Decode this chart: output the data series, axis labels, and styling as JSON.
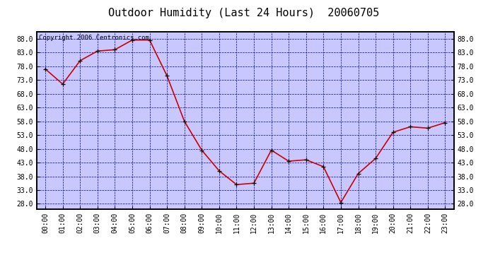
{
  "title": "Outdoor Humidity (Last 24 Hours)  20060705",
  "copyright_text": "Copyright 2006 Centronics.com",
  "x_labels": [
    "00:00",
    "01:00",
    "02:00",
    "03:00",
    "04:00",
    "05:00",
    "06:00",
    "07:00",
    "08:00",
    "09:00",
    "10:00",
    "11:00",
    "12:00",
    "13:00",
    "14:00",
    "15:00",
    "16:00",
    "17:00",
    "18:00",
    "19:00",
    "20:00",
    "21:00",
    "22:00",
    "23:00"
  ],
  "x_values": [
    0,
    1,
    2,
    3,
    4,
    5,
    6,
    7,
    8,
    9,
    10,
    11,
    12,
    13,
    14,
    15,
    16,
    17,
    18,
    19,
    20,
    21,
    22,
    23
  ],
  "y_values": [
    77.0,
    71.5,
    80.0,
    83.5,
    84.0,
    87.5,
    87.5,
    74.5,
    58.0,
    47.5,
    40.0,
    35.0,
    35.5,
    47.5,
    43.5,
    44.0,
    41.5,
    28.5,
    39.0,
    44.5,
    54.0,
    56.0,
    55.5,
    57.5
  ],
  "ylim_min": 26.0,
  "ylim_max": 90.5,
  "yticks": [
    28.0,
    33.0,
    38.0,
    43.0,
    48.0,
    53.0,
    58.0,
    63.0,
    68.0,
    73.0,
    78.0,
    83.0,
    88.0
  ],
  "line_color": "#cc0000",
  "marker_color": "#000000",
  "background_color": "#c8c8ff",
  "grid_color": "#0000bb",
  "title_fontsize": 11,
  "axis_label_fontsize": 7,
  "copyright_fontsize": 6.5
}
